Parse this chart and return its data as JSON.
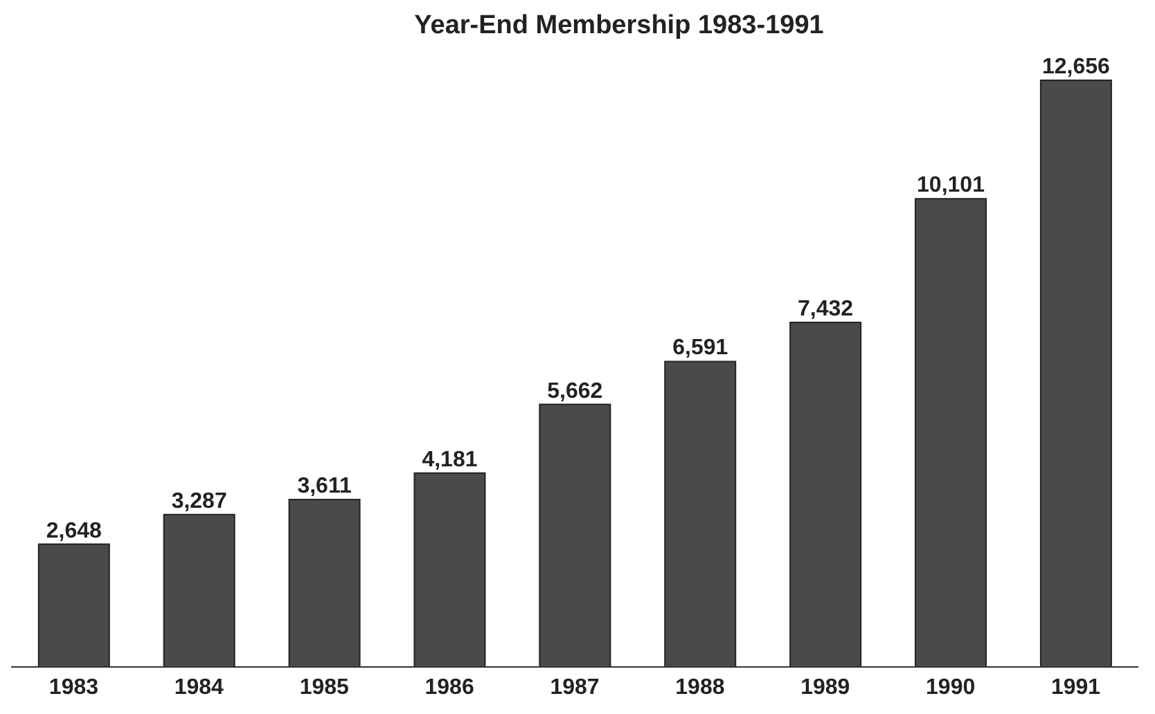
{
  "chart_data": {
    "type": "bar",
    "title": "Year-End Membership 1983-1991",
    "categories": [
      "1983",
      "1984",
      "1985",
      "1986",
      "1987",
      "1988",
      "1989",
      "1990",
      "1991"
    ],
    "values": [
      2648,
      3287,
      3611,
      4181,
      5662,
      6591,
      7432,
      10101,
      12656
    ],
    "value_labels": [
      "2,648",
      "3,287",
      "3,611",
      "4,181",
      "5,662",
      "6,591",
      "7,432",
      "10,101",
      "12,656"
    ],
    "color": "#4a4a4a"
  }
}
